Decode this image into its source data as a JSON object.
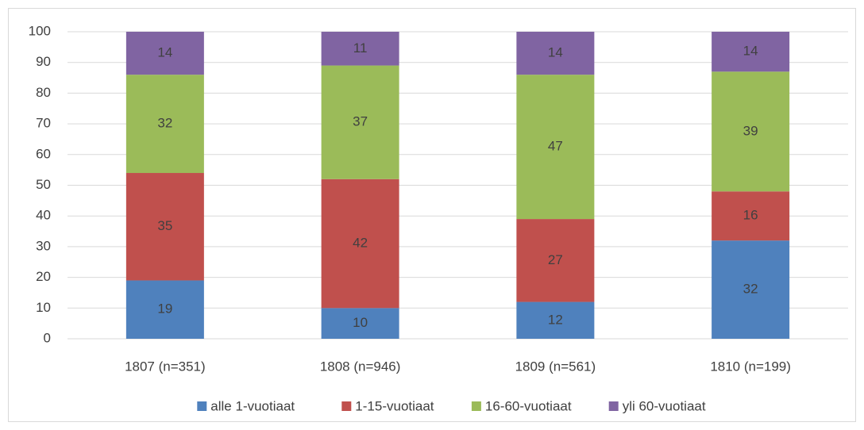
{
  "chart_data": {
    "type": "stacked_bar",
    "categories": [
      "1807 (n=351)",
      "1808 (n=946)",
      "1809 (n=561)",
      "1810 (n=199)"
    ],
    "series": [
      {
        "name": "alle 1-vuotiaat",
        "color": "#4f81bd",
        "values": [
          19,
          10,
          12,
          32
        ]
      },
      {
        "name": "1-15-vuotiaat",
        "color": "#c0504d",
        "values": [
          35,
          42,
          27,
          16
        ]
      },
      {
        "name": "16-60-vuotiaat",
        "color": "#9bbb59",
        "values": [
          32,
          37,
          47,
          39
        ]
      },
      {
        "name": "yli 60-vuotiaat",
        "color": "#8064a2",
        "values": [
          14,
          11,
          14,
          14
        ]
      }
    ],
    "ylim": [
      0,
      100
    ],
    "yticks": [
      0,
      10,
      20,
      30,
      40,
      50,
      60,
      70,
      80,
      90,
      100
    ],
    "grid": true,
    "legend": "bottom"
  }
}
